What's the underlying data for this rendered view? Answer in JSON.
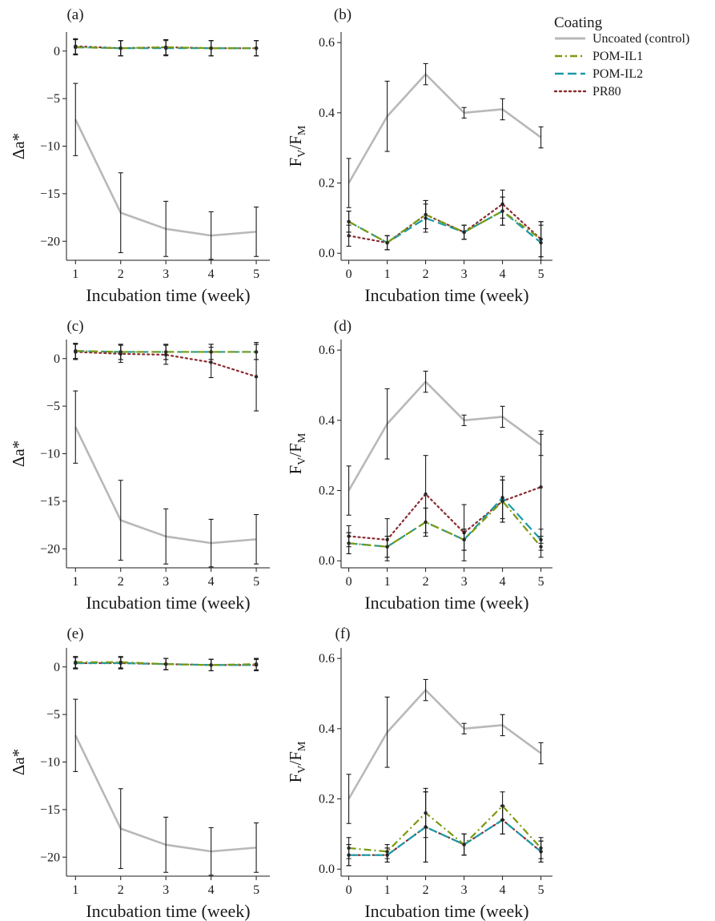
{
  "legend": {
    "title": "Coating",
    "items": [
      {
        "label": "Uncoated (control)",
        "color": "#b8b8b8",
        "dash": "solid"
      },
      {
        "label": "POM-IL1",
        "color": "#7a9a10",
        "dash": "dashdot"
      },
      {
        "label": "POM-IL2",
        "color": "#1a9aa8",
        "dash": "longdash"
      },
      {
        "label": "PR80",
        "color": "#8a2a30",
        "dash": "dotted"
      }
    ]
  },
  "chart_data": [
    {
      "panel": "(a)",
      "type": "line",
      "xlabel": "Incubation time (week)",
      "ylabel": "Δa*",
      "x": [
        1,
        2,
        3,
        4,
        5
      ],
      "xlim": [
        0.8,
        5.3
      ],
      "ylim": [
        -22,
        2
      ],
      "yticks": [
        0,
        -5,
        -10,
        -15,
        -20
      ],
      "series": [
        {
          "name": "Uncoated (control)",
          "values": [
            -7.2,
            -17.0,
            -18.7,
            -19.4,
            -19.0
          ],
          "err": [
            3.8,
            4.2,
            2.9,
            2.5,
            2.6
          ]
        },
        {
          "name": "POM-IL1",
          "values": [
            0.4,
            0.3,
            0.4,
            0.3,
            0.3
          ],
          "err": [
            0.8,
            0.8,
            0.8,
            0.8,
            0.8
          ]
        },
        {
          "name": "POM-IL2",
          "values": [
            0.4,
            0.3,
            0.3,
            0.3,
            0.3
          ],
          "err": [
            0.8,
            0.8,
            0.8,
            0.8,
            0.8
          ]
        },
        {
          "name": "PR80",
          "values": [
            0.5,
            0.3,
            0.4,
            0.3,
            0.3
          ],
          "err": [
            0.8,
            0.8,
            0.8,
            0.8,
            0.8
          ]
        }
      ]
    },
    {
      "panel": "(b)",
      "type": "line",
      "xlabel": "Incubation time (week)",
      "ylabel": "FV/FM",
      "x": [
        0,
        1,
        2,
        3,
        4,
        5
      ],
      "xlim": [
        -0.2,
        5.3
      ],
      "ylim": [
        -0.02,
        0.63
      ],
      "yticks": [
        0.0,
        0.2,
        0.4,
        0.6
      ],
      "series": [
        {
          "name": "Uncoated (control)",
          "values": [
            0.2,
            0.39,
            0.51,
            0.4,
            0.41,
            0.33
          ],
          "err": [
            0.07,
            0.1,
            0.03,
            0.015,
            0.03,
            0.03
          ]
        },
        {
          "name": "POM-IL1",
          "values": [
            0.09,
            0.03,
            0.11,
            0.06,
            0.12,
            0.04
          ],
          "err": [
            0.03,
            0.02,
            0.04,
            0.02,
            0.04,
            0.05
          ]
        },
        {
          "name": "POM-IL2",
          "values": [
            0.09,
            0.03,
            0.1,
            0.06,
            0.12,
            0.03
          ],
          "err": [
            0.03,
            0.02,
            0.04,
            0.02,
            0.04,
            0.05
          ]
        },
        {
          "name": "PR80",
          "values": [
            0.05,
            0.03,
            0.11,
            0.06,
            0.14,
            0.04
          ],
          "err": [
            0.03,
            0.02,
            0.04,
            0.02,
            0.04,
            0.05
          ]
        }
      ]
    },
    {
      "panel": "(c)",
      "type": "line",
      "xlabel": "Incubation time (week)",
      "ylabel": "Δa*",
      "x": [
        1,
        2,
        3,
        4,
        5
      ],
      "xlim": [
        0.8,
        5.3
      ],
      "ylim": [
        -22,
        2
      ],
      "yticks": [
        0,
        -5,
        -10,
        -15,
        -20
      ],
      "series": [
        {
          "name": "Uncoated (control)",
          "values": [
            -7.2,
            -17.0,
            -18.7,
            -19.4,
            -19.0
          ],
          "err": [
            3.8,
            4.2,
            2.9,
            2.5,
            2.6
          ]
        },
        {
          "name": "POM-IL1",
          "values": [
            0.8,
            0.7,
            0.7,
            0.7,
            0.7
          ],
          "err": [
            0.8,
            0.8,
            0.8,
            0.8,
            0.8
          ]
        },
        {
          "name": "POM-IL2",
          "values": [
            0.8,
            0.7,
            0.7,
            0.7,
            0.7
          ],
          "err": [
            0.8,
            0.8,
            0.8,
            0.8,
            0.8
          ]
        },
        {
          "name": "PR80",
          "values": [
            0.7,
            0.5,
            0.4,
            -0.4,
            -1.9
          ],
          "err": [
            0.8,
            0.9,
            1.0,
            1.6,
            3.6
          ]
        }
      ]
    },
    {
      "panel": "(d)",
      "type": "line",
      "xlabel": "Incubation time (week)",
      "ylabel": "FV/FM",
      "x": [
        0,
        1,
        2,
        3,
        4,
        5
      ],
      "xlim": [
        -0.2,
        5.3
      ],
      "ylim": [
        -0.02,
        0.63
      ],
      "yticks": [
        0.0,
        0.2,
        0.4,
        0.6
      ],
      "series": [
        {
          "name": "Uncoated (control)",
          "values": [
            0.2,
            0.39,
            0.51,
            0.4,
            0.41,
            0.33
          ],
          "err": [
            0.07,
            0.1,
            0.03,
            0.015,
            0.03,
            0.03
          ]
        },
        {
          "name": "POM-IL1",
          "values": [
            0.05,
            0.04,
            0.11,
            0.06,
            0.17,
            0.04
          ],
          "err": [
            0.03,
            0.03,
            0.04,
            0.03,
            0.06,
            0.03
          ]
        },
        {
          "name": "POM-IL2",
          "values": [
            0.05,
            0.04,
            0.11,
            0.06,
            0.18,
            0.06
          ],
          "err": [
            0.03,
            0.03,
            0.04,
            0.03,
            0.06,
            0.03
          ]
        },
        {
          "name": "PR80",
          "values": [
            0.07,
            0.06,
            0.19,
            0.08,
            0.17,
            0.21
          ],
          "err": [
            0.03,
            0.06,
            0.11,
            0.08,
            0.06,
            0.16
          ]
        }
      ]
    },
    {
      "panel": "(e)",
      "type": "line",
      "xlabel": "Incubation time (week)",
      "ylabel": "Δa*",
      "x": [
        1,
        2,
        3,
        4,
        5
      ],
      "xlim": [
        0.8,
        5.3
      ],
      "ylim": [
        -22,
        2
      ],
      "yticks": [
        0,
        -5,
        -10,
        -15,
        -20
      ],
      "series": [
        {
          "name": "Uncoated (control)",
          "values": [
            -7.2,
            -17.0,
            -18.7,
            -19.4,
            -19.0
          ],
          "err": [
            3.8,
            4.2,
            2.9,
            2.5,
            2.6
          ]
        },
        {
          "name": "POM-IL1",
          "values": [
            0.5,
            0.5,
            0.3,
            0.2,
            0.3
          ],
          "err": [
            0.6,
            0.6,
            0.6,
            0.6,
            0.6
          ]
        },
        {
          "name": "POM-IL2",
          "values": [
            0.4,
            0.4,
            0.3,
            0.2,
            0.2
          ],
          "err": [
            0.6,
            0.6,
            0.6,
            0.6,
            0.6
          ]
        },
        {
          "name": "PR80",
          "values": [
            0.4,
            0.4,
            0.3,
            0.2,
            0.2
          ],
          "err": [
            0.6,
            0.6,
            0.6,
            0.6,
            0.6
          ]
        }
      ]
    },
    {
      "panel": "(f)",
      "type": "line",
      "xlabel": "Incubation time (week)",
      "ylabel": "FV/FM",
      "x": [
        0,
        1,
        2,
        3,
        4,
        5
      ],
      "xlim": [
        -0.2,
        5.3
      ],
      "ylim": [
        -0.02,
        0.63
      ],
      "yticks": [
        0.0,
        0.2,
        0.4,
        0.6
      ],
      "series": [
        {
          "name": "Uncoated (control)",
          "values": [
            0.2,
            0.39,
            0.51,
            0.4,
            0.41,
            0.33
          ],
          "err": [
            0.07,
            0.1,
            0.03,
            0.015,
            0.03,
            0.03
          ]
        },
        {
          "name": "POM-IL1",
          "values": [
            0.06,
            0.05,
            0.16,
            0.07,
            0.18,
            0.06
          ],
          "err": [
            0.03,
            0.02,
            0.07,
            0.03,
            0.04,
            0.03
          ]
        },
        {
          "name": "POM-IL2",
          "values": [
            0.04,
            0.04,
            0.12,
            0.07,
            0.14,
            0.05
          ],
          "err": [
            0.03,
            0.02,
            0.1,
            0.03,
            0.04,
            0.03
          ]
        },
        {
          "name": "PR80",
          "values": [
            0.04,
            0.04,
            0.12,
            0.07,
            0.14,
            0.05
          ],
          "err": [
            0.03,
            0.02,
            0.1,
            0.03,
            0.04,
            0.03
          ]
        }
      ]
    }
  ]
}
